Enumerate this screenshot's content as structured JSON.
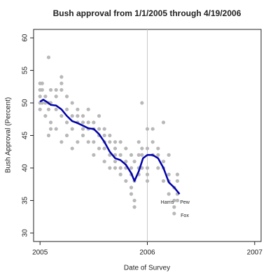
{
  "chart_data": {
    "type": "scatter",
    "title": "Bush approval from 1/1/2005 through 4/19/2006",
    "x_label": "Date of Survey",
    "y_label": "Bush Approval (Percent)",
    "xlim": [
      2004.94,
      2007.06
    ],
    "ylim": [
      28.7,
      61.3
    ],
    "xticks": [
      2005,
      2006,
      2007
    ],
    "yticks": [
      30,
      35,
      40,
      45,
      50,
      55,
      60
    ],
    "vline": 2006,
    "annotations": [
      "Harris",
      "Pew",
      "Fox"
    ],
    "series": [
      {
        "type": "scatter",
        "color": "#b8b8b8",
        "x": [
          2005.0,
          2005.0,
          2005.0,
          2005.0,
          2005.0,
          2005.02,
          2005.02,
          2005.02,
          2005.05,
          2005.05,
          2005.05,
          2005.08,
          2005.08,
          2005.08,
          2005.08,
          2005.1,
          2005.1,
          2005.1,
          2005.1,
          2005.15,
          2005.15,
          2005.15,
          2005.15,
          2005.2,
          2005.2,
          2005.2,
          2005.2,
          2005.2,
          2005.25,
          2005.25,
          2005.25,
          2005.25,
          2005.3,
          2005.3,
          2005.3,
          2005.3,
          2005.35,
          2005.35,
          2005.35,
          2005.35,
          2005.4,
          2005.4,
          2005.4,
          2005.4,
          2005.45,
          2005.45,
          2005.45,
          2005.45,
          2005.5,
          2005.5,
          2005.5,
          2005.5,
          2005.55,
          2005.55,
          2005.55,
          2005.55,
          2005.6,
          2005.6,
          2005.6,
          2005.6,
          2005.6,
          2005.65,
          2005.65,
          2005.65,
          2005.65,
          2005.7,
          2005.7,
          2005.7,
          2005.7,
          2005.7,
          2005.75,
          2005.75,
          2005.75,
          2005.75,
          2005.8,
          2005.8,
          2005.8,
          2005.8,
          2005.85,
          2005.85,
          2005.85,
          2005.85,
          2005.85,
          2005.88,
          2005.88,
          2005.88,
          2005.88,
          2005.92,
          2005.92,
          2005.92,
          2005.92,
          2005.95,
          2005.95,
          2005.95,
          2005.95,
          2006.0,
          2006.0,
          2006.0,
          2006.0,
          2006.0,
          2006.05,
          2006.05,
          2006.05,
          2006.1,
          2006.1,
          2006.1,
          2006.15,
          2006.15,
          2006.15,
          2006.15,
          2006.2,
          2006.2,
          2006.2,
          2006.2,
          2006.25,
          2006.25,
          2006.25,
          2006.25,
          2006.28,
          2006.28,
          2006.28,
          2006.28
        ],
        "values": [
          49,
          50,
          51,
          52,
          53,
          50,
          52,
          53,
          48,
          50,
          51,
          45,
          49,
          50,
          57,
          46,
          47,
          50,
          52,
          46,
          49,
          51,
          52,
          44,
          48,
          52,
          53,
          54,
          45,
          47,
          49,
          51,
          43,
          46,
          48,
          50,
          44,
          47,
          48,
          49,
          45,
          46,
          47,
          48,
          44,
          46,
          47,
          49,
          42,
          44,
          46,
          47,
          43,
          45,
          46,
          48,
          41,
          43,
          44,
          45,
          46,
          40,
          42,
          44,
          45,
          40,
          41,
          42,
          43,
          44,
          39,
          40,
          42,
          44,
          38,
          40,
          41,
          43,
          36,
          37,
          39,
          40,
          42,
          34,
          35,
          38,
          41,
          39,
          40,
          42,
          44,
          40,
          42,
          43,
          50,
          38,
          39,
          40,
          43,
          46,
          42,
          44,
          46,
          40,
          42,
          43,
          38,
          40,
          41,
          47,
          36,
          38,
          39,
          42,
          33,
          34,
          35,
          37,
          35,
          36,
          38,
          39
        ]
      },
      {
        "type": "line",
        "color": "#0000aa",
        "x": [
          2005.0,
          2005.03,
          2005.06,
          2005.1,
          2005.15,
          2005.2,
          2005.25,
          2005.3,
          2005.35,
          2005.4,
          2005.45,
          2005.5,
          2005.55,
          2005.6,
          2005.65,
          2005.7,
          2005.75,
          2005.8,
          2005.85,
          2005.88,
          2005.92,
          2005.96,
          2006.0,
          2006.05,
          2006.1,
          2006.15,
          2006.2,
          2006.25,
          2006.3
        ],
        "values": [
          50.2,
          50.5,
          50.2,
          49.7,
          49.6,
          49.0,
          48.0,
          47.2,
          46.9,
          46.5,
          46.1,
          46.0,
          45.2,
          44.0,
          42.5,
          41.5,
          41.2,
          40.5,
          39.2,
          38.0,
          39.5,
          41.5,
          42.0,
          42.0,
          41.5,
          40.0,
          37.8,
          37.0,
          36.0
        ]
      }
    ]
  }
}
